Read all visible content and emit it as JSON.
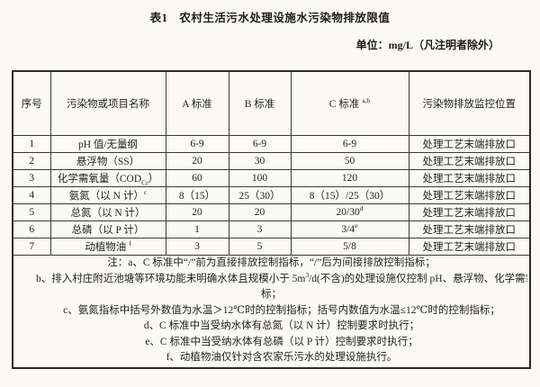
{
  "page": {
    "title": "表1　农村生活污水处理设施水污染物排放限值",
    "unit_note": "单位：mg/L（凡注明者除外）"
  },
  "table": {
    "columns": [
      {
        "key": "no",
        "label": "序号"
      },
      {
        "key": "name",
        "label": "污染物或项目名称"
      },
      {
        "key": "std_a",
        "label": "A 标准"
      },
      {
        "key": "std_b",
        "label": "B 标准"
      },
      {
        "key": "std_c",
        "label": "C 标准 ^{a,b}"
      },
      {
        "key": "location",
        "label": "污染物排放监控位置"
      }
    ],
    "rows": [
      {
        "no": "1",
        "name": "pH 值/无量纲",
        "std_a": "6-9",
        "std_b": "6-9",
        "std_c": "6-9",
        "location": "处理工艺末端排放口"
      },
      {
        "no": "2",
        "name": "悬浮物（SS）",
        "std_a": "20",
        "std_b": "30",
        "std_c": "50",
        "location": "处理工艺末端排放口"
      },
      {
        "no": "3",
        "name": "化学需氧量（COD_{Cr}）",
        "std_a": "60",
        "std_b": "100",
        "std_c": "120",
        "location": "处理工艺末端排放口"
      },
      {
        "no": "4",
        "name": "氨氮（以 N 计）^{c}",
        "std_a": "8（15）",
        "std_b": "25（30）",
        "std_c": "8（15）/25（30）",
        "location": "处理工艺末端排放口"
      },
      {
        "no": "5",
        "name": "总氮（以 N 计）",
        "std_a": "20",
        "std_b": "20",
        "std_c": "20/30^{d}",
        "location": "处理工艺末端排放口"
      },
      {
        "no": "6",
        "name": "总磷（以 P 计）",
        "std_a": "1",
        "std_b": "3",
        "std_c": "3/4^{e}",
        "location": "处理工艺末端排放口"
      },
      {
        "no": "7",
        "name": "动植物油 ^{f}",
        "std_a": "3",
        "std_b": "5",
        "std_c": "5/8",
        "location": "处理工艺末端排放口"
      }
    ],
    "notes": [
      {
        "indent": 0,
        "text": "注：a、C 标准中“/”前为直接排放控制指标，“/”后为间接排放控制指标；"
      },
      {
        "indent": 1,
        "text": "b、排入村庄附近池塘等环境功能未明确水体且规模小于 5m^{3}/d(不含)的处理设施仅控制 pH、悬浮物、化学需氧量指"
      },
      {
        "indent": 0,
        "text": "标；"
      },
      {
        "indent": 1,
        "text": "c、氨氮指标中括号外数值为水温＞12℃时的控制指标；括号内数值为水温≤12℃时的控制指标；"
      },
      {
        "indent": 1,
        "text": "d、C 标准中当受纳水体有总氮（以 N 计）控制要求时执行；"
      },
      {
        "indent": 1,
        "text": "e、C 标准中当受纳水体有总磷（以 P 计）控制要求时执行；"
      },
      {
        "indent": 1,
        "text": "f、动植物油仅针对含农家乐污水的处理设施执行。"
      }
    ]
  },
  "colors": {
    "page_bg": "#fbfaf7",
    "border": "#3c3a37",
    "outer_border": "#2c2b29",
    "text": "#232220"
  }
}
